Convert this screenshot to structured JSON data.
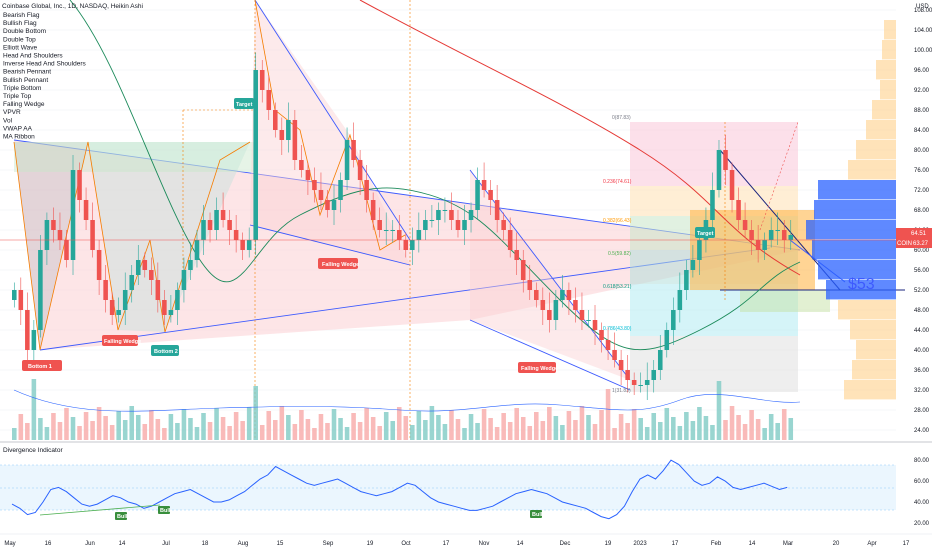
{
  "window": {
    "title": "Coinbase Global, Inc., 1D, NASDAQ, Heikin Ashi"
  },
  "indicators": [
    "Bearish Flag",
    "Bullish Flag",
    "Double Bottom",
    "Double Top",
    "Elliott Wave",
    "Head And Shoulders",
    "Inverse Head And Shoulders",
    "Bearish Pennant",
    "Bullish Pennant",
    "Triple Bottom",
    "Triple Top",
    "Falling Wedge",
    "VPVR",
    "Vol",
    "VWAP AA",
    "MA Ribbon"
  ],
  "price_axis": {
    "label": "USD",
    "ticks": [
      "108.00",
      "104.00",
      "100.00",
      "96.00",
      "92.00",
      "88.00",
      "84.00",
      "80.00",
      "76.00",
      "72.00",
      "68.00",
      "64.00",
      "60.00",
      "56.00",
      "52.00",
      "48.00",
      "44.00",
      "40.00",
      "36.00",
      "32.00",
      "28.00",
      "24.00"
    ],
    "current_label": "COIN",
    "current_price": "63.27",
    "alt_price": "64.51"
  },
  "time_axis": [
    "May",
    "16",
    "Jun",
    "14",
    "Jul",
    "18",
    "Aug",
    "15",
    "Sep",
    "19",
    "Oct",
    "17",
    "Nov",
    "14",
    "Dec",
    "19",
    "2023",
    "17",
    "Feb",
    "14",
    "Mar",
    "20",
    "Apr",
    "17"
  ],
  "annotations": {
    "target_1": "Target",
    "target_2": "Target",
    "falling_wedge_1": "Falling Wedge",
    "falling_wedge_2": "Falling Wedge",
    "falling_wedge_3": "Falling Wedge",
    "bottom_1": "Bottom 1",
    "bottom_2": "Bottom 2",
    "price_target": "$53"
  },
  "fib_levels": [
    {
      "label": "0(87.83)",
      "color": "#787b86"
    },
    {
      "label": "0.236(74.61)",
      "color": "#f23645"
    },
    {
      "label": "0.382(66.43)",
      "color": "#ff9800"
    },
    {
      "label": "0.5(59.82)",
      "color": "#4caf50"
    },
    {
      "label": "0.618(53.21)",
      "color": "#089981"
    },
    {
      "label": "0.786(43.80)",
      "color": "#00bcd4"
    },
    {
      "label": "1(31.83)",
      "color": "#787b86"
    }
  ],
  "divergence": {
    "title": "Divergence Indicator",
    "ticks": [
      "80.00",
      "60.00",
      "40.00",
      "20.00"
    ],
    "bull_label": "Bull"
  },
  "colors": {
    "up": "#26a69a",
    "down": "#ef5350",
    "wedge": "#3d5afe",
    "ma_long": "#e53935",
    "ma_mid": "#1b8a5a",
    "orange": "#f57c00",
    "rsi": "#2962ff"
  },
  "chart_data": {
    "type": "candlestick",
    "title": "Coinbase Global, Inc., 1D, NASDAQ, Heikin Ashi",
    "ylabel": "USD",
    "ylim": [
      22,
      110
    ],
    "x_ticks": [
      "May",
      "16",
      "Jun",
      "14",
      "Jul",
      "18",
      "Aug",
      "15",
      "Sep",
      "19",
      "Oct",
      "17",
      "Nov",
      "14",
      "Dec",
      "19",
      "2023",
      "17",
      "Feb",
      "14",
      "Mar",
      "20",
      "Apr",
      "17"
    ],
    "close_series": [
      52,
      48,
      40,
      44,
      60,
      66,
      64,
      62,
      58,
      76,
      70,
      66,
      60,
      54,
      50,
      47,
      48,
      52,
      55,
      58,
      56,
      54,
      50,
      47,
      48,
      52,
      56,
      58,
      62,
      66,
      64,
      68,
      66,
      64,
      62,
      60,
      62,
      96,
      92,
      88,
      84,
      82,
      86,
      78,
      76,
      74,
      72,
      70,
      68,
      70,
      74,
      82,
      78,
      74,
      70,
      66,
      64,
      64,
      64,
      62,
      60,
      62,
      64,
      66,
      66,
      68,
      68,
      66,
      64,
      66,
      68,
      74,
      72,
      70,
      66,
      64,
      60,
      58,
      54,
      52,
      50,
      48,
      46,
      50,
      52,
      50,
      48,
      46,
      46,
      44,
      42,
      40,
      38,
      36,
      34,
      33,
      33,
      34,
      36,
      40,
      44,
      48,
      52,
      56,
      58,
      62,
      66,
      72,
      80,
      76,
      70,
      66,
      64,
      62,
      60,
      62,
      64,
      64,
      62,
      63
    ],
    "current": 63.27,
    "fibonacci": [
      87.83,
      74.61,
      66.43,
      59.82,
      53.21,
      43.8,
      31.83
    ],
    "divergence_ylim": [
      18,
      85
    ]
  }
}
